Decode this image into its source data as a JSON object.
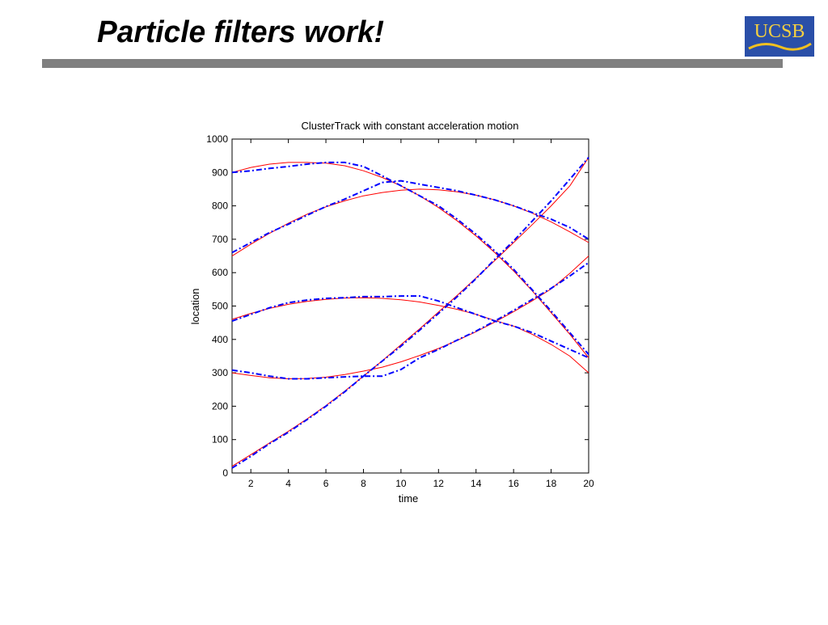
{
  "slide": {
    "title": "Particle filters work!",
    "logo": "UCSB"
  },
  "chart_data": {
    "type": "line",
    "title": "ClusterTrack with constant acceleration motion",
    "xlabel": "time",
    "ylabel": "location",
    "x": [
      1,
      2,
      3,
      4,
      5,
      6,
      7,
      8,
      9,
      10,
      11,
      12,
      13,
      14,
      15,
      16,
      17,
      18,
      19,
      20
    ],
    "xlim": [
      1,
      20
    ],
    "xticks": [
      2,
      4,
      6,
      8,
      10,
      12,
      14,
      16,
      18,
      20
    ],
    "ylim": [
      0,
      1000
    ],
    "yticks": [
      0,
      100,
      200,
      300,
      400,
      500,
      600,
      700,
      800,
      900,
      1000
    ],
    "series": [
      {
        "color": "#ff0000",
        "dash": "none",
        "values": [
          900,
          915,
          925,
          930,
          930,
          928,
          920,
          905,
          885,
          860,
          830,
          795,
          755,
          710,
          660,
          605,
          545,
          480,
          415,
          345
        ]
      },
      {
        "color": "#ff0000",
        "dash": "none",
        "values": [
          650,
          685,
          718,
          748,
          775,
          797,
          815,
          830,
          840,
          847,
          850,
          848,
          842,
          832,
          818,
          800,
          778,
          752,
          722,
          690
        ]
      },
      {
        "color": "#ff0000",
        "dash": "none",
        "values": [
          460,
          478,
          493,
          505,
          514,
          520,
          524,
          525,
          523,
          519,
          512,
          502,
          490,
          475,
          457,
          440,
          415,
          385,
          350,
          300
        ]
      },
      {
        "color": "#ff0000",
        "dash": "none",
        "values": [
          300,
          292,
          285,
          282,
          283,
          287,
          295,
          305,
          317,
          333,
          352,
          373,
          397,
          423,
          452,
          483,
          516,
          551,
          598,
          650
        ]
      },
      {
        "color": "#ff0000",
        "dash": "none",
        "values": [
          20,
          55,
          90,
          125,
          162,
          202,
          245,
          290,
          336,
          384,
          432,
          482,
          532,
          584,
          636,
          690,
          744,
          800,
          860,
          945
        ]
      },
      {
        "color": "#0000ff",
        "dash": "7,3,2,3",
        "values": [
          900,
          905,
          912,
          918,
          925,
          930,
          930,
          918,
          890,
          860,
          830,
          800,
          760,
          715,
          665,
          610,
          548,
          485,
          420,
          355
        ]
      },
      {
        "color": "#0000ff",
        "dash": "7,3,2,3",
        "values": [
          660,
          690,
          720,
          745,
          772,
          798,
          820,
          845,
          870,
          875,
          865,
          855,
          845,
          832,
          818,
          800,
          780,
          760,
          735,
          700
        ]
      },
      {
        "color": "#0000ff",
        "dash": "7,3,2,3",
        "values": [
          455,
          475,
          495,
          510,
          518,
          523,
          525,
          528,
          528,
          530,
          530,
          515,
          495,
          475,
          455,
          440,
          420,
          395,
          370,
          345
        ]
      },
      {
        "color": "#0000ff",
        "dash": "7,3,2,3",
        "values": [
          308,
          300,
          290,
          282,
          282,
          285,
          288,
          290,
          290,
          310,
          345,
          370,
          398,
          425,
          455,
          487,
          520,
          553,
          590,
          630
        ]
      },
      {
        "color": "#0000ff",
        "dash": "7,3,2,3",
        "values": [
          15,
          50,
          88,
          122,
          160,
          200,
          243,
          290,
          335,
          380,
          428,
          478,
          528,
          582,
          640,
          695,
          755,
          815,
          880,
          945
        ]
      }
    ]
  }
}
